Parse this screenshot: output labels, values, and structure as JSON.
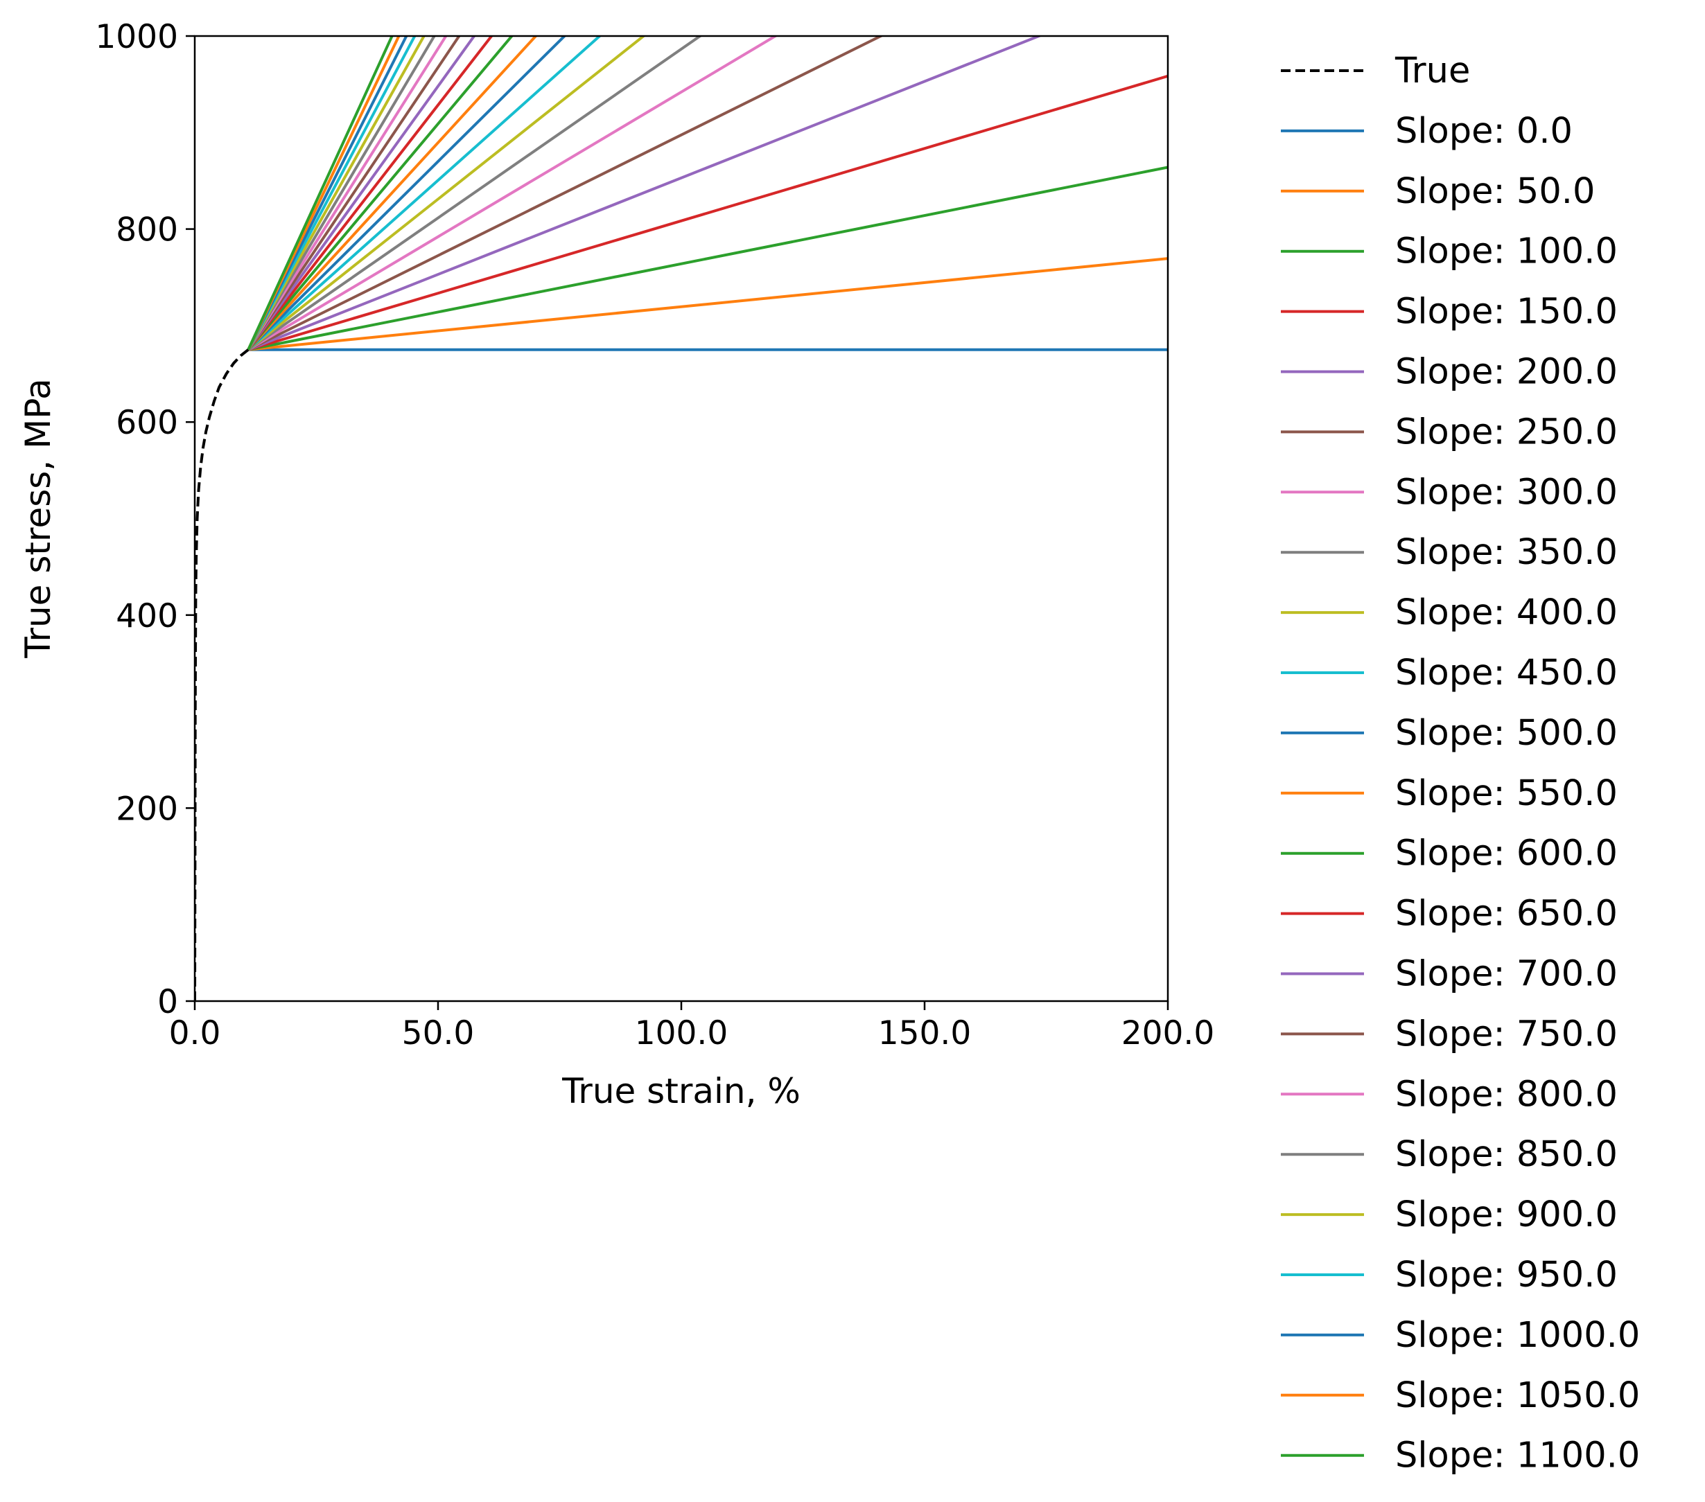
{
  "chart_data": {
    "type": "line",
    "title": "",
    "xlabel": "True strain, %",
    "ylabel": "True stress, MPa",
    "xlim": [
      0,
      200
    ],
    "ylim": [
      0,
      1000
    ],
    "xticks": [
      0,
      50,
      100,
      150,
      200
    ],
    "xtick_labels": [
      "0.0",
      "50.0",
      "100.0",
      "150.0",
      "200.0"
    ],
    "yticks": [
      0,
      200,
      400,
      600,
      800,
      1000
    ],
    "ytick_labels": [
      "0",
      "200",
      "400",
      "600",
      "800",
      "1000"
    ],
    "grid": false,
    "legend_position": "outside-right",
    "true_curve": {
      "name": "True",
      "style": "dashed",
      "color": "#000000",
      "x": [
        0,
        0.05,
        0.1,
        0.2,
        0.3,
        0.5,
        0.8,
        1.2,
        1.7,
        2.3,
        3.0,
        4.0,
        5.0,
        6.5,
        8.0,
        9.5,
        11.0
      ],
      "y": [
        0,
        150,
        300,
        420,
        460,
        500,
        530,
        553,
        573,
        590,
        605,
        622,
        636,
        650,
        661,
        669,
        675
      ]
    },
    "yield_point": {
      "x": 11.0,
      "y": 675
    },
    "series": [
      {
        "name": "Slope: 0.0",
        "slope": 0,
        "color": "#1f77b4"
      },
      {
        "name": "Slope: 50.0",
        "slope": 50,
        "color": "#ff7f0e"
      },
      {
        "name": "Slope: 100.0",
        "slope": 100,
        "color": "#2ca02c"
      },
      {
        "name": "Slope: 150.0",
        "slope": 150,
        "color": "#d62728"
      },
      {
        "name": "Slope: 200.0",
        "slope": 200,
        "color": "#9467bd"
      },
      {
        "name": "Slope: 250.0",
        "slope": 250,
        "color": "#8c564b"
      },
      {
        "name": "Slope: 300.0",
        "slope": 300,
        "color": "#e377c2"
      },
      {
        "name": "Slope: 350.0",
        "slope": 350,
        "color": "#7f7f7f"
      },
      {
        "name": "Slope: 400.0",
        "slope": 400,
        "color": "#bcbd22"
      },
      {
        "name": "Slope: 450.0",
        "slope": 450,
        "color": "#17becf"
      },
      {
        "name": "Slope: 500.0",
        "slope": 500,
        "color": "#1f77b4"
      },
      {
        "name": "Slope: 550.0",
        "slope": 550,
        "color": "#ff7f0e"
      },
      {
        "name": "Slope: 600.0",
        "slope": 600,
        "color": "#2ca02c"
      },
      {
        "name": "Slope: 650.0",
        "slope": 650,
        "color": "#d62728"
      },
      {
        "name": "Slope: 700.0",
        "slope": 700,
        "color": "#9467bd"
      },
      {
        "name": "Slope: 750.0",
        "slope": 750,
        "color": "#8c564b"
      },
      {
        "name": "Slope: 800.0",
        "slope": 800,
        "color": "#e377c2"
      },
      {
        "name": "Slope: 850.0",
        "slope": 850,
        "color": "#7f7f7f"
      },
      {
        "name": "Slope: 900.0",
        "slope": 900,
        "color": "#bcbd22"
      },
      {
        "name": "Slope: 950.0",
        "slope": 950,
        "color": "#17becf"
      },
      {
        "name": "Slope: 1000.0",
        "slope": 1000,
        "color": "#1f77b4"
      },
      {
        "name": "Slope: 1050.0",
        "slope": 1050,
        "color": "#ff7f0e"
      },
      {
        "name": "Slope: 1100.0",
        "slope": 1100,
        "color": "#2ca02c"
      }
    ]
  }
}
